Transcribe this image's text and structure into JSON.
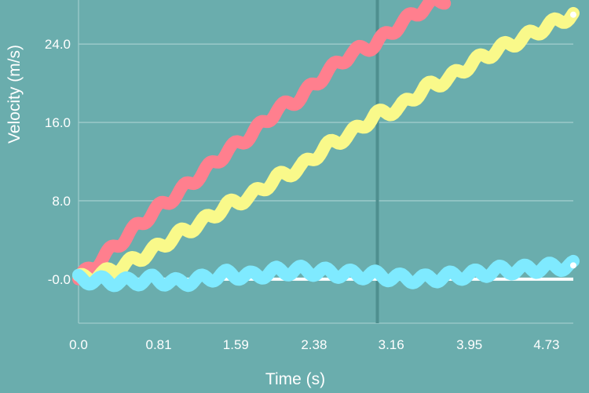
{
  "chart_data": {
    "type": "line",
    "xlabel": "Time (s)",
    "ylabel": "Velocity (m/s)",
    "xlim": [
      0,
      5
    ],
    "ylim": [
      -4.5,
      28.5
    ],
    "x_ticks": [
      "0.0",
      "0.81",
      "1.59",
      "2.38",
      "3.16",
      "3.95",
      "4.73"
    ],
    "x_tick_values": [
      0,
      0.81,
      1.59,
      2.38,
      3.16,
      3.95,
      4.73
    ],
    "y_ticks": [
      "-0.0",
      "8.0",
      "16.0",
      "24.0"
    ],
    "y_tick_values": [
      0,
      8,
      16,
      24
    ],
    "grid": "horizontal",
    "cursor_x": 3.02,
    "colors": {
      "background": "#6aadad",
      "grid": "#9fcccc",
      "cursor": "#4f8f8f",
      "zero_line": "#ffffff"
    },
    "series": [
      {
        "color": "#ff7f8e",
        "x": [
          0,
          0.25,
          0.5,
          0.75,
          1.0,
          1.25,
          1.5,
          1.75,
          2.0,
          2.25,
          2.5,
          2.75,
          3.0,
          3.25,
          3.5,
          3.7
        ],
        "y": [
          0,
          2.2,
          4.5,
          6.8,
          8.7,
          10.8,
          13.0,
          14.8,
          17.2,
          18.6,
          21.0,
          23.0,
          24.0,
          26.0,
          27.8,
          28.6
        ]
      },
      {
        "color": "#f9f98a",
        "x": [
          0,
          0.25,
          0.5,
          0.75,
          1.0,
          1.25,
          1.5,
          1.75,
          2.0,
          2.25,
          2.5,
          2.75,
          3.0,
          3.25,
          3.5,
          3.75,
          4.0,
          4.25,
          4.5,
          4.75,
          5.0
        ],
        "y": [
          0,
          0.5,
          1.6,
          2.9,
          4.5,
          5.8,
          7.5,
          8.5,
          10.3,
          11.4,
          13.5,
          14.8,
          16.7,
          17.5,
          19.5,
          20.5,
          22.2,
          23.5,
          24.6,
          25.9,
          27.0
        ]
      },
      {
        "color": "#7feaff",
        "x": [
          0,
          0.25,
          0.5,
          0.75,
          1.0,
          1.25,
          1.5,
          1.75,
          2.0,
          2.25,
          2.5,
          2.75,
          3.0,
          3.25,
          3.5,
          3.75,
          4.0,
          4.25,
          4.5,
          4.75,
          5.0
        ],
        "y": [
          0,
          -0.2,
          -0.3,
          0.0,
          -0.4,
          0.0,
          0.5,
          0.3,
          0.8,
          0.9,
          0.7,
          0.5,
          0.4,
          0.1,
          0.0,
          0.3,
          0.5,
          0.9,
          1.0,
          1.2,
          1.4
        ]
      }
    ]
  }
}
